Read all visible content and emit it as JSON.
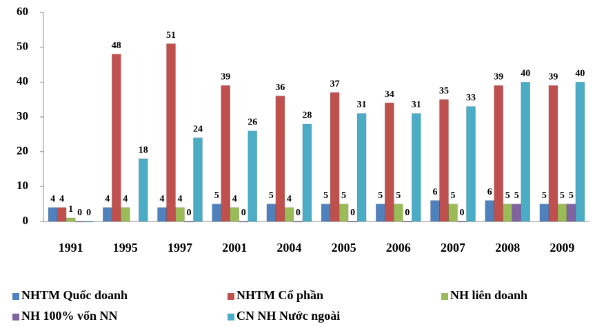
{
  "chart_data": {
    "type": "bar",
    "categories": [
      "1991",
      "1995",
      "1997",
      "2001",
      "2004",
      "2005",
      "2006",
      "2007",
      "2008",
      "2009"
    ],
    "series": [
      {
        "name": "NHTM Quốc doanh",
        "color": "#4F81BD",
        "values": [
          4,
          4,
          4,
          5,
          5,
          5,
          5,
          6,
          6,
          5
        ]
      },
      {
        "name": "NHTM Cổ phần",
        "color": "#C0504D",
        "values": [
          4,
          48,
          51,
          39,
          36,
          37,
          34,
          35,
          39,
          39
        ]
      },
      {
        "name": "NH liên doanh",
        "color": "#9BBB59",
        "values": [
          1,
          4,
          4,
          4,
          4,
          5,
          5,
          5,
          5,
          5
        ]
      },
      {
        "name": "NH 100% vốn NN",
        "color": "#8064A2",
        "values": [
          0,
          null,
          0,
          0,
          0,
          0,
          0,
          0,
          5,
          5
        ]
      },
      {
        "name": "CN NH Nước ngoài",
        "color": "#4BACC6",
        "values": [
          0,
          18,
          24,
          26,
          28,
          31,
          31,
          33,
          40,
          40
        ]
      }
    ],
    "ylim": [
      0,
      60
    ],
    "yticks": [
      0,
      10,
      20,
      30,
      40,
      50,
      60
    ],
    "grid": false,
    "legend": "bottom"
  }
}
